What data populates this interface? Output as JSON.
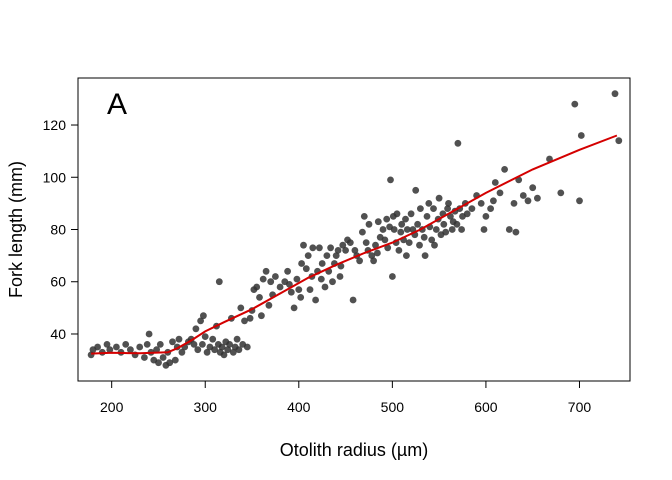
{
  "chart_data": {
    "type": "scatter",
    "panel_label": "A",
    "xlabel": "Otolith radius (µm)",
    "ylabel": "Fork length (mm)",
    "xlim": [
      164,
      754
    ],
    "ylim": [
      22,
      138
    ],
    "xticks": [
      200,
      300,
      400,
      500,
      600,
      700
    ],
    "yticks": [
      40,
      60,
      80,
      100,
      120
    ],
    "xtick_labels": [
      "200",
      "300",
      "400",
      "500",
      "600",
      "700"
    ],
    "ytick_labels": [
      "40",
      "60",
      "80",
      "100",
      "120"
    ],
    "grid": false,
    "point_color": "#333333",
    "fit_color": "#d40000",
    "points": [
      [
        178,
        32
      ],
      [
        180,
        34
      ],
      [
        185,
        35
      ],
      [
        190,
        33
      ],
      [
        195,
        36
      ],
      [
        198,
        34
      ],
      [
        205,
        35
      ],
      [
        210,
        33
      ],
      [
        215,
        36
      ],
      [
        220,
        34
      ],
      [
        225,
        32
      ],
      [
        230,
        35
      ],
      [
        235,
        31
      ],
      [
        238,
        36
      ],
      [
        240,
        40
      ],
      [
        242,
        33
      ],
      [
        245,
        30
      ],
      [
        248,
        34
      ],
      [
        250,
        29
      ],
      [
        252,
        36
      ],
      [
        255,
        31
      ],
      [
        258,
        28
      ],
      [
        260,
        33
      ],
      [
        262,
        29
      ],
      [
        265,
        37
      ],
      [
        268,
        30
      ],
      [
        270,
        35
      ],
      [
        272,
        38
      ],
      [
        275,
        33
      ],
      [
        278,
        35
      ],
      [
        282,
        37
      ],
      [
        285,
        38
      ],
      [
        288,
        36
      ],
      [
        290,
        42
      ],
      [
        292,
        34
      ],
      [
        295,
        45
      ],
      [
        297,
        36
      ],
      [
        298,
        47
      ],
      [
        300,
        39
      ],
      [
        302,
        33
      ],
      [
        305,
        35
      ],
      [
        308,
        38
      ],
      [
        310,
        34
      ],
      [
        312,
        43
      ],
      [
        314,
        36
      ],
      [
        315,
        60
      ],
      [
        316,
        33
      ],
      [
        318,
        35
      ],
      [
        320,
        32
      ],
      [
        322,
        37
      ],
      [
        324,
        34
      ],
      [
        326,
        36
      ],
      [
        328,
        46
      ],
      [
        330,
        33
      ],
      [
        332,
        35
      ],
      [
        334,
        38
      ],
      [
        336,
        34
      ],
      [
        338,
        50
      ],
      [
        340,
        36
      ],
      [
        342,
        45
      ],
      [
        345,
        35
      ],
      [
        348,
        46
      ],
      [
        350,
        49
      ],
      [
        352,
        57
      ],
      [
        355,
        58
      ],
      [
        358,
        54
      ],
      [
        360,
        47
      ],
      [
        362,
        61
      ],
      [
        365,
        64
      ],
      [
        368,
        51
      ],
      [
        370,
        60
      ],
      [
        372,
        55
      ],
      [
        375,
        62
      ],
      [
        380,
        58
      ],
      [
        385,
        60
      ],
      [
        388,
        64
      ],
      [
        390,
        59
      ],
      [
        392,
        56
      ],
      [
        395,
        50
      ],
      [
        398,
        61
      ],
      [
        400,
        57
      ],
      [
        402,
        54
      ],
      [
        403,
        67
      ],
      [
        405,
        74
      ],
      [
        408,
        65
      ],
      [
        410,
        70
      ],
      [
        412,
        57
      ],
      [
        414,
        62
      ],
      [
        415,
        73
      ],
      [
        418,
        53
      ],
      [
        420,
        64
      ],
      [
        422,
        73
      ],
      [
        424,
        61
      ],
      [
        425,
        67
      ],
      [
        428,
        58
      ],
      [
        430,
        70
      ],
      [
        432,
        64
      ],
      [
        434,
        73
      ],
      [
        436,
        60
      ],
      [
        438,
        67
      ],
      [
        440,
        70
      ],
      [
        442,
        72
      ],
      [
        444,
        62
      ],
      [
        445,
        66
      ],
      [
        447,
        74
      ],
      [
        450,
        72
      ],
      [
        452,
        76
      ],
      [
        455,
        75
      ],
      [
        458,
        53
      ],
      [
        460,
        72
      ],
      [
        462,
        70
      ],
      [
        465,
        68
      ],
      [
        468,
        79
      ],
      [
        470,
        85
      ],
      [
        472,
        75
      ],
      [
        474,
        72
      ],
      [
        475,
        82
      ],
      [
        478,
        70
      ],
      [
        480,
        68
      ],
      [
        482,
        74
      ],
      [
        484,
        71
      ],
      [
        485,
        83
      ],
      [
        487,
        77
      ],
      [
        490,
        80
      ],
      [
        492,
        76
      ],
      [
        494,
        84
      ],
      [
        495,
        73
      ],
      [
        497,
        81
      ],
      [
        498,
        99
      ],
      [
        500,
        62
      ],
      [
        501,
        85
      ],
      [
        502,
        80
      ],
      [
        504,
        75
      ],
      [
        505,
        86
      ],
      [
        507,
        72
      ],
      [
        509,
        79
      ],
      [
        510,
        82
      ],
      [
        512,
        76
      ],
      [
        514,
        84
      ],
      [
        515,
        70
      ],
      [
        516,
        80
      ],
      [
        518,
        75
      ],
      [
        520,
        86
      ],
      [
        522,
        80
      ],
      [
        524,
        78
      ],
      [
        525,
        95
      ],
      [
        527,
        82
      ],
      [
        529,
        74
      ],
      [
        530,
        88
      ],
      [
        532,
        80
      ],
      [
        534,
        77
      ],
      [
        535,
        70
      ],
      [
        537,
        85
      ],
      [
        539,
        90
      ],
      [
        540,
        81
      ],
      [
        542,
        76
      ],
      [
        544,
        88
      ],
      [
        545,
        74
      ],
      [
        547,
        80
      ],
      [
        549,
        84
      ],
      [
        550,
        92
      ],
      [
        552,
        78
      ],
      [
        554,
        86
      ],
      [
        555,
        82
      ],
      [
        557,
        79
      ],
      [
        559,
        88
      ],
      [
        560,
        90
      ],
      [
        562,
        85
      ],
      [
        564,
        80
      ],
      [
        565,
        83
      ],
      [
        567,
        87
      ],
      [
        569,
        82
      ],
      [
        570,
        113
      ],
      [
        572,
        88
      ],
      [
        574,
        80
      ],
      [
        575,
        85
      ],
      [
        578,
        90
      ],
      [
        580,
        86
      ],
      [
        585,
        88
      ],
      [
        590,
        93
      ],
      [
        595,
        90
      ],
      [
        598,
        80
      ],
      [
        600,
        85
      ],
      [
        605,
        88
      ],
      [
        608,
        91
      ],
      [
        610,
        98
      ],
      [
        615,
        94
      ],
      [
        620,
        103
      ],
      [
        625,
        80
      ],
      [
        630,
        90
      ],
      [
        632,
        79
      ],
      [
        635,
        99
      ],
      [
        640,
        93
      ],
      [
        645,
        91
      ],
      [
        650,
        96
      ],
      [
        655,
        92
      ],
      [
        668,
        107
      ],
      [
        680,
        94
      ],
      [
        695,
        128
      ],
      [
        700,
        91
      ],
      [
        702,
        116
      ],
      [
        738,
        132
      ],
      [
        742,
        114
      ]
    ],
    "fit_line": [
      [
        178,
        32.5
      ],
      [
        200,
        32.8
      ],
      [
        230,
        32.6
      ],
      [
        260,
        33.0
      ],
      [
        270,
        34.5
      ],
      [
        285,
        37.5
      ],
      [
        300,
        41.0
      ],
      [
        320,
        44.5
      ],
      [
        350,
        49.5
      ],
      [
        380,
        55.5
      ],
      [
        410,
        61.5
      ],
      [
        440,
        66.5
      ],
      [
        470,
        71.0
      ],
      [
        500,
        75.0
      ],
      [
        530,
        80.0
      ],
      [
        560,
        86.0
      ],
      [
        600,
        94.0
      ],
      [
        650,
        103.0
      ],
      [
        700,
        110.5
      ],
      [
        740,
        116.0
      ]
    ]
  }
}
